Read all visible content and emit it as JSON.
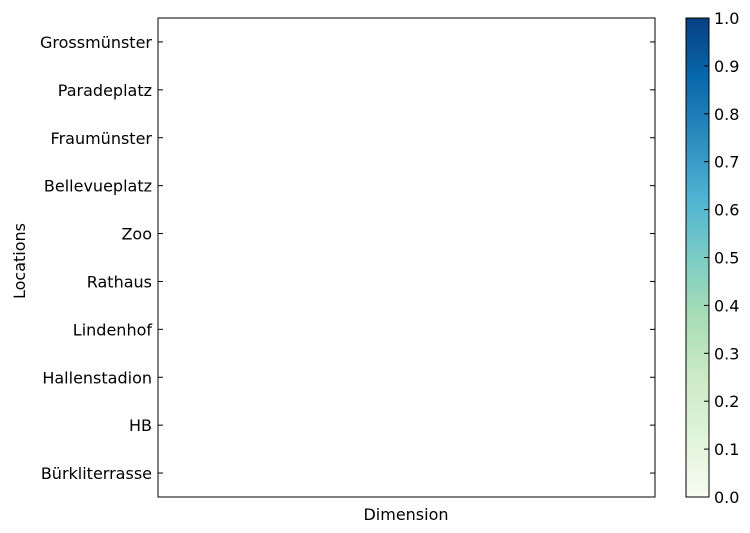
{
  "chart_data": {
    "type": "heatmap",
    "title": "",
    "xlabel": "Dimension",
    "ylabel": "Locations",
    "y_categories": [
      "Grossmünster",
      "Paradeplatz",
      "Fraumünster",
      "Bellevueplatz",
      "Zoo",
      "Rathaus",
      "Lindenhof",
      "Hallenstadion",
      "HB",
      "Bürkliterrasse"
    ],
    "x_categories": [],
    "values": [],
    "colorbar": {
      "range": [
        0.0,
        1.0
      ],
      "ticks": [
        "0.0",
        "0.1",
        "0.2",
        "0.3",
        "0.4",
        "0.5",
        "0.6",
        "0.7",
        "0.8",
        "0.9",
        "1.0"
      ],
      "colormap": "GnBu",
      "colors": [
        "#f7fcf0",
        "#e0f3db",
        "#ccebc5",
        "#a8ddb5",
        "#7bccc4",
        "#4eb3d3",
        "#2b8cbe",
        "#0868ac",
        "#084081"
      ]
    },
    "grid": false
  }
}
